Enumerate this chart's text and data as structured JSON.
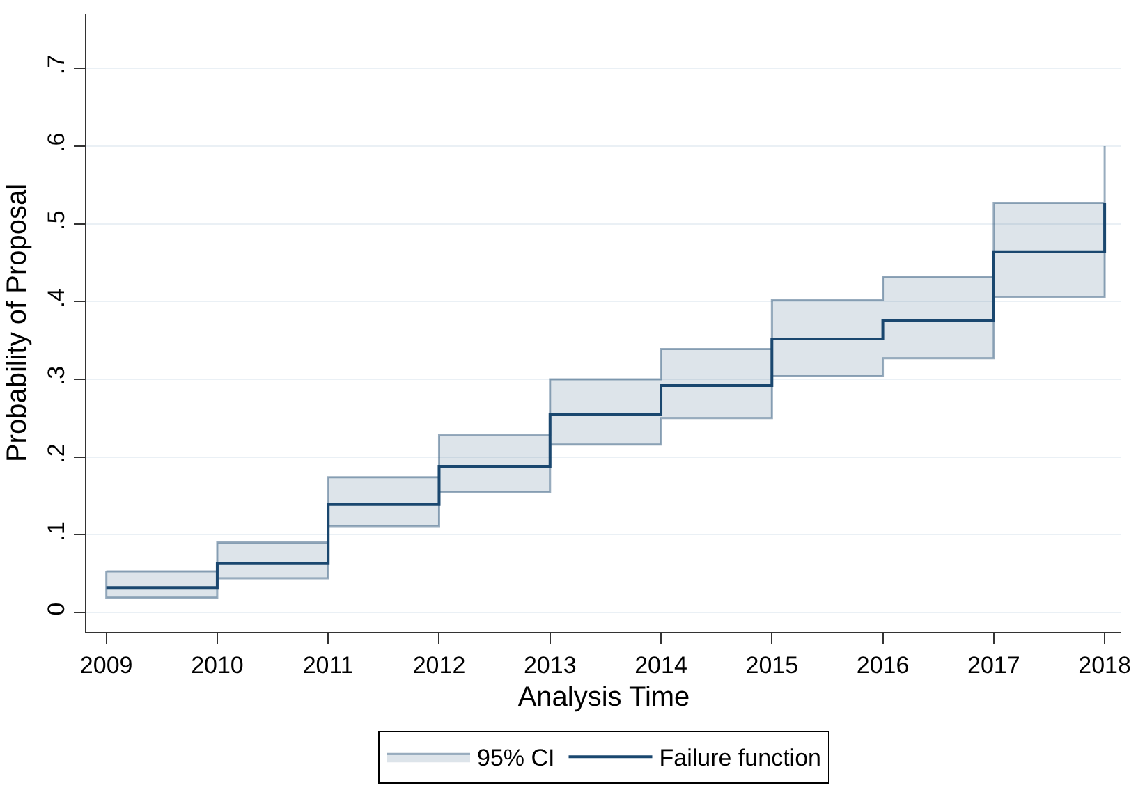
{
  "chart_data": {
    "type": "step",
    "xlabel": "Analysis Time",
    "ylabel": "Probability of Proposal",
    "x": [
      2009,
      2010,
      2011,
      2012,
      2013,
      2014,
      2015,
      2016,
      2017,
      2018
    ],
    "series": [
      {
        "name": "Failure function",
        "color": "#1a476f",
        "values": [
          0.032,
          0.063,
          0.139,
          0.188,
          0.255,
          0.292,
          0.352,
          0.376,
          0.464,
          0.527
        ],
        "lower": [
          0.019,
          0.044,
          0.111,
          0.155,
          0.216,
          0.25,
          0.304,
          0.327,
          0.406,
          0.457
        ],
        "upper": [
          0.053,
          0.09,
          0.174,
          0.228,
          0.3,
          0.339,
          0.402,
          0.432,
          0.527,
          0.6
        ]
      }
    ],
    "annotations": [
      "95% CI"
    ],
    "xlim": [
      2008.82,
      2018.15
    ],
    "xticks": [
      2009,
      2010,
      2011,
      2012,
      2013,
      2014,
      2015,
      2016,
      2017,
      2018
    ],
    "ylim": [
      -0.025,
      0.77
    ],
    "yticks": [
      {
        "value": 0,
        "label": "0"
      },
      {
        "value": 0.1,
        "label": ".1"
      },
      {
        "value": 0.2,
        "label": ".2"
      },
      {
        "value": 0.3,
        "label": ".3"
      },
      {
        "value": 0.4,
        "label": ".4"
      },
      {
        "value": 0.5,
        "label": ".5"
      },
      {
        "value": 0.6,
        "label": ".6"
      },
      {
        "value": 0.7,
        "label": ".7"
      }
    ],
    "grid": "y",
    "legend": "bottom",
    "line_style": "solid"
  }
}
